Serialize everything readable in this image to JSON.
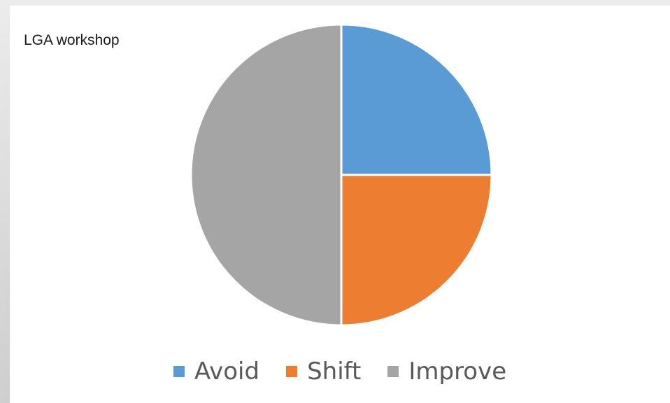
{
  "chart_data": {
    "type": "pie",
    "title": "LGA workshop",
    "categories": [
      "Avoid",
      "Shift",
      "Improve"
    ],
    "values": [
      25,
      25,
      50
    ],
    "colors": [
      "#5b9bd5",
      "#ed7d31",
      "#a5a5a5"
    ],
    "start_angle_deg": 0,
    "direction": "clockwise",
    "legend_position": "bottom",
    "data_labels": false
  }
}
